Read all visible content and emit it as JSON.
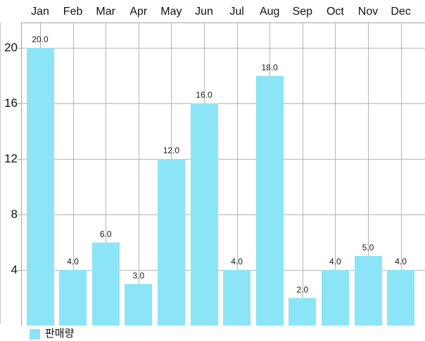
{
  "chart_data": {
    "type": "bar",
    "title": "",
    "categories": [
      "Jan",
      "Feb",
      "Mar",
      "Apr",
      "May",
      "Jun",
      "Jul",
      "Aug",
      "Sep",
      "Oct",
      "Nov",
      "Dec"
    ],
    "series": [
      {
        "name": "판매량",
        "values": [
          20,
          4,
          6,
          3,
          12,
          16,
          4,
          18,
          2,
          4,
          5,
          4
        ],
        "color": "#8BE5F7"
      }
    ],
    "value_labels": [
      "20.0",
      "4.0",
      "6.0",
      "3.0",
      "12.0",
      "16.0",
      "4.0",
      "18.0",
      "2.0",
      "4.0",
      "5.0",
      "4.0"
    ],
    "xlabel": "",
    "ylabel": "",
    "y_ticks": [
      4,
      8,
      12,
      16,
      20
    ],
    "ylim": [
      0,
      21.8
    ],
    "grid": true,
    "category_axis_position": "top",
    "legend_position": "bottom-left"
  },
  "legend": {
    "items": [
      {
        "label": "판매량",
        "color": "#8BE5F7"
      }
    ]
  },
  "colors": {
    "bar_fill": "#8BE5F7",
    "grid_line": "#b5b5b5",
    "axis_border": "#a5a5a5",
    "label_text": "#111111",
    "background": "#ffffff"
  }
}
